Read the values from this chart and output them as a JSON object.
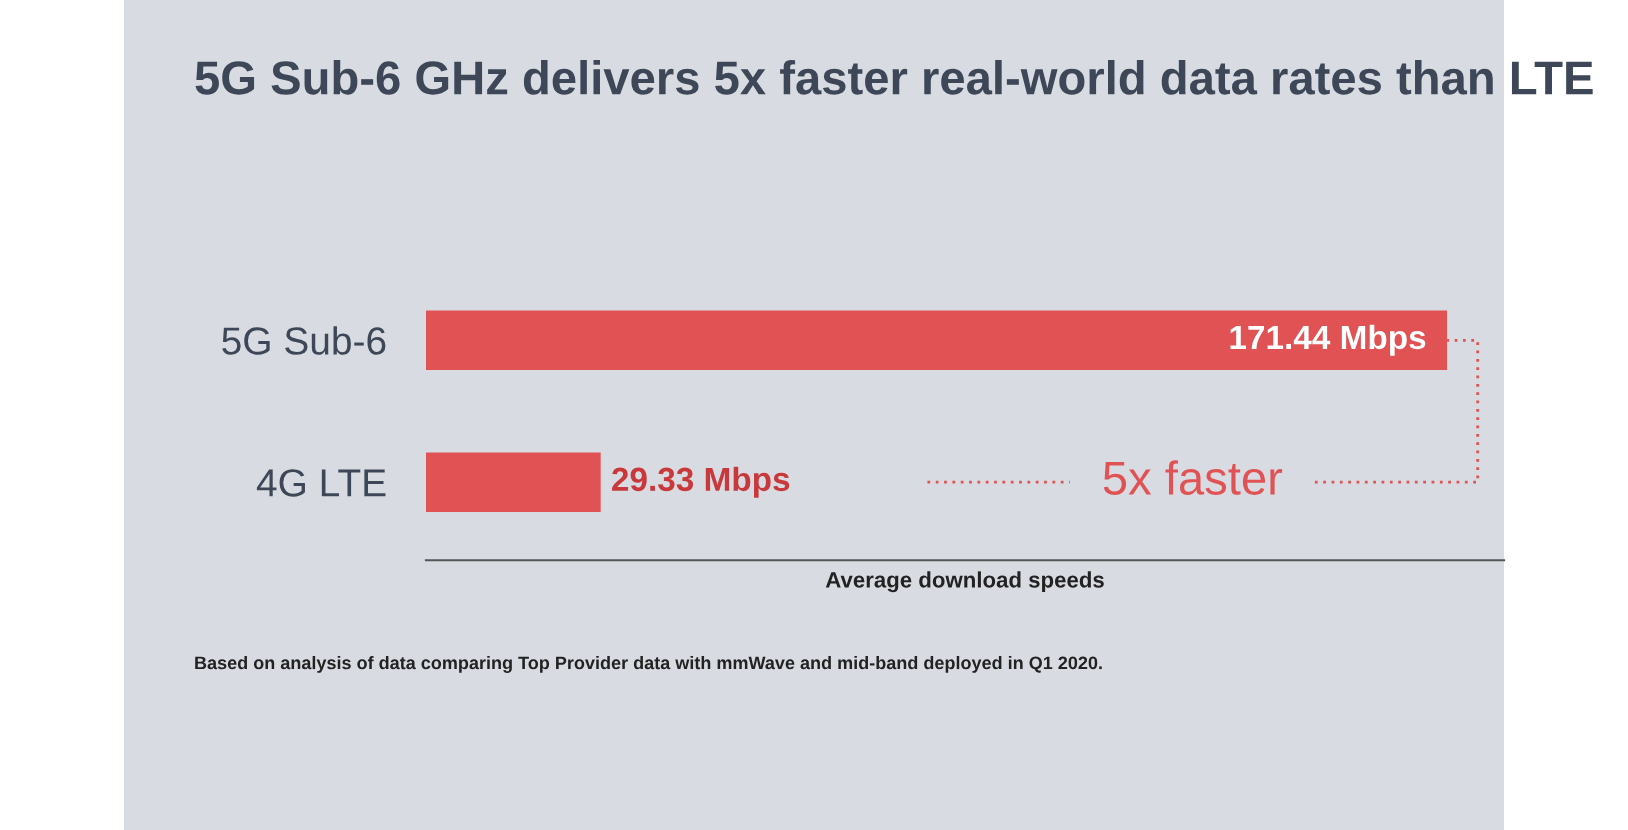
{
  "chart_data": {
    "type": "bar",
    "orientation": "horizontal",
    "title": "5G Sub-6 GHz delivers 5x faster real-world data rates than LTE",
    "categories": [
      "5G Sub-6",
      "4G LTE"
    ],
    "values": [
      171.44,
      29.33
    ],
    "value_labels": [
      "171.44 Mbps",
      "29.33 Mbps"
    ],
    "color": "#e05254",
    "xlim": [
      0,
      181
    ],
    "xlabel": "Average download speeds",
    "tick_labels": "y",
    "grid": false,
    "annotations": [
      "5x faster",
      "Based on analysis of data comparing Top Provider data with mmWave and mid-band deployed in Q1 2020."
    ]
  }
}
